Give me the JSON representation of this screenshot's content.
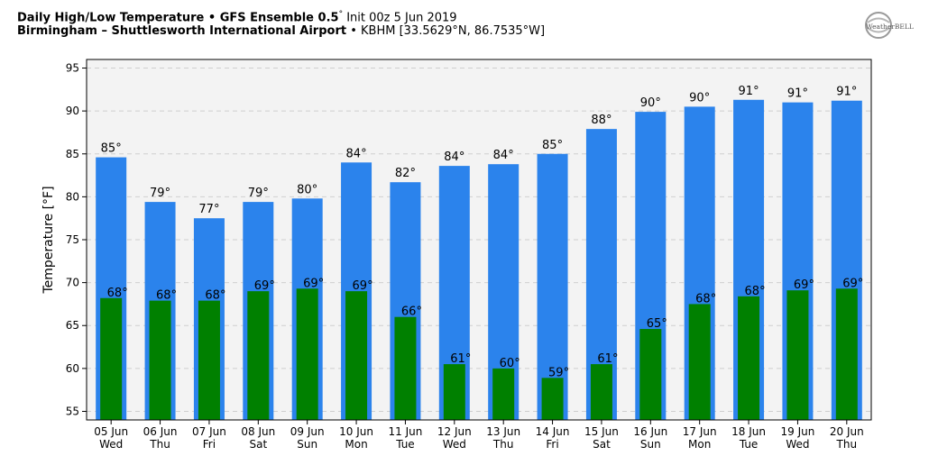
{
  "header": {
    "title_bold": "Daily High/Low Temperature • GFS Ensemble 0.5",
    "title_deg": "°",
    "title_rest": " Init 00z 5 Jun 2019",
    "location_bold": "Birmingham – Shuttlesworth International Airport",
    "location_rest": " • KBHM [33.5629°N, 86.7535°W]"
  },
  "logo": {
    "text": "WeatherBELL",
    "icon": "weatherbell-logo"
  },
  "colors": {
    "high": "#2b83ec",
    "low": "#008000",
    "plot_bg": "#f3f3f3"
  },
  "chart_data": {
    "type": "bar",
    "ylabel": "Temperature [°F]",
    "ylim": [
      54,
      96
    ],
    "yticks": [
      55,
      60,
      65,
      70,
      75,
      80,
      85,
      90,
      95
    ],
    "grid": true,
    "categories": [
      {
        "date": "05 Jun",
        "day": "Wed"
      },
      {
        "date": "06 Jun",
        "day": "Thu"
      },
      {
        "date": "07 Jun",
        "day": "Fri"
      },
      {
        "date": "08 Jun",
        "day": "Sat"
      },
      {
        "date": "09 Jun",
        "day": "Sun"
      },
      {
        "date": "10 Jun",
        "day": "Mon"
      },
      {
        "date": "11 Jun",
        "day": "Tue"
      },
      {
        "date": "12 Jun",
        "day": "Wed"
      },
      {
        "date": "13 Jun",
        "day": "Thu"
      },
      {
        "date": "14 Jun",
        "day": "Fri"
      },
      {
        "date": "15 Jun",
        "day": "Sat"
      },
      {
        "date": "16 Jun",
        "day": "Sun"
      },
      {
        "date": "17 Jun",
        "day": "Mon"
      },
      {
        "date": "18 Jun",
        "day": "Tue"
      },
      {
        "date": "19 Jun",
        "day": "Wed"
      },
      {
        "date": "20 Jun",
        "day": "Thu"
      }
    ],
    "series": [
      {
        "key": "high",
        "values": [
          84.6,
          79.4,
          77.5,
          79.4,
          79.8,
          84.0,
          81.7,
          83.6,
          83.8,
          85.0,
          87.9,
          89.9,
          90.5,
          91.3,
          91.0,
          91.2
        ],
        "labels": [
          "85°",
          "79°",
          "77°",
          "79°",
          "80°",
          "84°",
          "82°",
          "84°",
          "84°",
          "85°",
          "88°",
          "90°",
          "90°",
          "91°",
          "91°",
          "91°"
        ]
      },
      {
        "key": "low",
        "values": [
          68.2,
          67.9,
          67.9,
          69.0,
          69.3,
          69.0,
          66.0,
          60.5,
          60.0,
          58.9,
          60.5,
          64.6,
          67.5,
          68.4,
          69.1,
          69.3
        ],
        "labels": [
          "68°",
          "68°",
          "68°",
          "69°",
          "69°",
          "69°",
          "66°",
          "61°",
          "60°",
          "59°",
          "61°",
          "65°",
          "68°",
          "68°",
          "69°",
          "69°"
        ]
      }
    ]
  }
}
